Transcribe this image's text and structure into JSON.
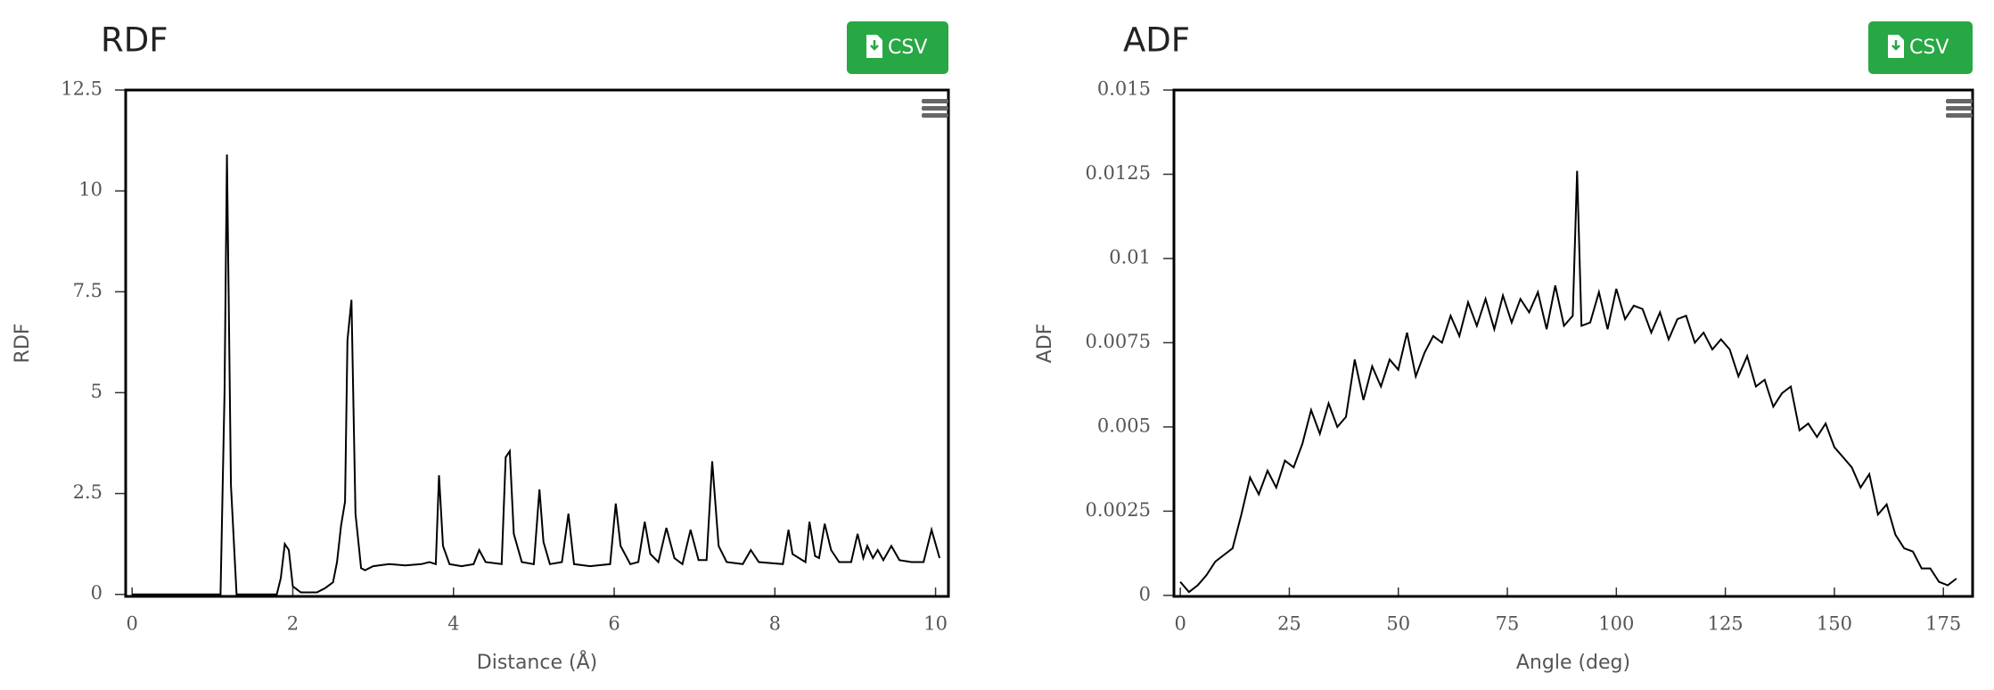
{
  "chart_data": [
    {
      "type": "line",
      "title": "RDF",
      "export_button": "CSV",
      "x_label": "Distance (Å)",
      "y_label": "RDF",
      "color": "#000000",
      "xlim": [
        -0.08,
        10.16
      ],
      "ylim": [
        -0.05,
        12.5
      ],
      "xticks": [
        0,
        2,
        4,
        6,
        8,
        10
      ],
      "yticks": [
        0,
        2.5,
        5,
        7.5,
        10,
        12.5
      ],
      "x": [
        0,
        1.1,
        1.15,
        1.18,
        1.23,
        1.3,
        1.8,
        1.85,
        1.9,
        1.95,
        2.0,
        2.1,
        2.3,
        2.4,
        2.5,
        2.55,
        2.6,
        2.65,
        2.68,
        2.73,
        2.78,
        2.85,
        2.9,
        3.0,
        3.2,
        3.4,
        3.6,
        3.7,
        3.78,
        3.82,
        3.87,
        3.95,
        4.1,
        4.25,
        4.32,
        4.4,
        4.6,
        4.65,
        4.7,
        4.75,
        4.85,
        5.0,
        5.07,
        5.12,
        5.2,
        5.35,
        5.43,
        5.5,
        5.7,
        5.95,
        6.02,
        6.08,
        6.2,
        6.3,
        6.38,
        6.45,
        6.55,
        6.65,
        6.75,
        6.85,
        6.95,
        7.05,
        7.15,
        7.22,
        7.3,
        7.4,
        7.6,
        7.7,
        7.8,
        8.1,
        8.17,
        8.22,
        8.3,
        8.38,
        8.43,
        8.5,
        8.55,
        8.62,
        8.7,
        8.8,
        8.95,
        9.03,
        9.1,
        9.15,
        9.22,
        9.28,
        9.35,
        9.45,
        9.55,
        9.7,
        9.85,
        9.95,
        10.05
      ],
      "values": [
        0,
        0,
        5,
        10.9,
        2.7,
        0,
        0,
        0.4,
        1.25,
        1.1,
        0.2,
        0.05,
        0.05,
        0.15,
        0.3,
        0.8,
        1.7,
        2.3,
        6.3,
        7.3,
        2.0,
        0.65,
        0.6,
        0.7,
        0.75,
        0.72,
        0.75,
        0.8,
        0.75,
        2.95,
        1.2,
        0.75,
        0.7,
        0.75,
        1.1,
        0.8,
        0.75,
        3.4,
        3.55,
        1.5,
        0.8,
        0.75,
        2.6,
        1.3,
        0.75,
        0.8,
        2.0,
        0.75,
        0.7,
        0.75,
        2.25,
        1.2,
        0.75,
        0.8,
        1.8,
        1.0,
        0.8,
        1.65,
        0.9,
        0.75,
        1.6,
        0.85,
        0.85,
        3.3,
        1.2,
        0.8,
        0.75,
        1.1,
        0.8,
        0.75,
        1.6,
        1.0,
        0.9,
        0.8,
        1.8,
        0.95,
        0.9,
        1.75,
        1.1,
        0.8,
        0.8,
        1.5,
        0.9,
        1.2,
        0.9,
        1.1,
        0.85,
        1.2,
        0.85,
        0.8,
        0.8,
        1.6,
        0.9
      ]
    },
    {
      "type": "line",
      "title": "ADF",
      "export_button": "CSV",
      "x_label": "Angle (deg)",
      "y_label": "ADF",
      "color": "#000000",
      "xlim": [
        -1.46,
        181.7
      ],
      "ylim": [
        -3e-05,
        0.015
      ],
      "xticks": [
        0,
        25,
        50,
        75,
        100,
        125,
        150,
        175
      ],
      "yticks": [
        0,
        0.0025,
        0.005,
        0.0075,
        0.01,
        0.0125,
        0.015
      ],
      "x": [
        0,
        2,
        4,
        6,
        8,
        10,
        12,
        14,
        16,
        18,
        20,
        22,
        24,
        26,
        28,
        30,
        32,
        34,
        36,
        38,
        40,
        42,
        44,
        46,
        48,
        50,
        52,
        54,
        56,
        58,
        60,
        62,
        64,
        66,
        68,
        70,
        72,
        74,
        76,
        78,
        80,
        82,
        84,
        86,
        88,
        90,
        91,
        92,
        94,
        96,
        98,
        100,
        102,
        104,
        106,
        108,
        110,
        112,
        114,
        116,
        118,
        120,
        122,
        124,
        126,
        128,
        130,
        132,
        134,
        136,
        138,
        140,
        142,
        144,
        146,
        148,
        150,
        152,
        154,
        156,
        158,
        160,
        162,
        164,
        166,
        168,
        170,
        172,
        174,
        176,
        178
      ],
      "values": [
        0.0004,
        0.0001,
        0.0003,
        0.0006,
        0.001,
        0.0012,
        0.0014,
        0.0024,
        0.0035,
        0.003,
        0.0037,
        0.0032,
        0.004,
        0.0038,
        0.0045,
        0.0055,
        0.0048,
        0.0057,
        0.005,
        0.0053,
        0.007,
        0.0058,
        0.0068,
        0.0062,
        0.007,
        0.0067,
        0.0078,
        0.0065,
        0.0072,
        0.0077,
        0.0075,
        0.0083,
        0.0077,
        0.0087,
        0.008,
        0.0088,
        0.0079,
        0.0089,
        0.0081,
        0.0088,
        0.0084,
        0.009,
        0.0079,
        0.0092,
        0.008,
        0.0083,
        0.0126,
        0.008,
        0.0081,
        0.009,
        0.0079,
        0.0091,
        0.0082,
        0.0086,
        0.0085,
        0.0078,
        0.0084,
        0.0076,
        0.0082,
        0.0083,
        0.0075,
        0.0078,
        0.0073,
        0.0076,
        0.0073,
        0.0065,
        0.0071,
        0.0062,
        0.0064,
        0.0056,
        0.006,
        0.0062,
        0.0049,
        0.0051,
        0.0047,
        0.0051,
        0.0044,
        0.0041,
        0.0038,
        0.0032,
        0.0036,
        0.0024,
        0.0027,
        0.0018,
        0.0014,
        0.0013,
        0.0008,
        0.0008,
        0.0004,
        0.0003,
        0.0005
      ]
    }
  ]
}
